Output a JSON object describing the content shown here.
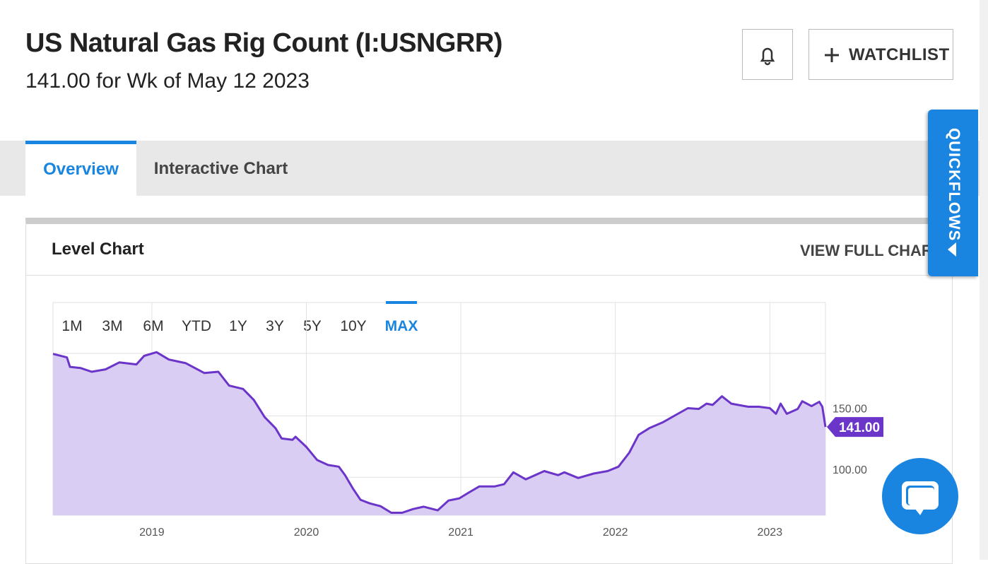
{
  "header": {
    "title": "US Natural Gas Rig Count (I:USNGRR)",
    "subtitle": "141.00 for Wk of May 12 2023"
  },
  "buttons": {
    "watchlist": "WATCHLIST"
  },
  "tabs": [
    "Overview",
    "Interactive Chart"
  ],
  "panel": {
    "title": "Level Chart",
    "link": "VIEW FULL CHART"
  },
  "quickflows": "QUICKFLOWS",
  "ranges": [
    "1M",
    "3M",
    "6M",
    "YTD",
    "1Y",
    "3Y",
    "5Y",
    "10Y",
    "MAX"
  ],
  "chart_data": {
    "type": "area",
    "x": [
      2018.36,
      2018.45,
      2018.47,
      2018.54,
      2018.61,
      2018.7,
      2018.79,
      2018.9,
      2018.95,
      2019.03,
      2019.11,
      2019.22,
      2019.34,
      2019.43,
      2019.5,
      2019.59,
      2019.66,
      2019.73,
      2019.8,
      2019.84,
      2019.91,
      2019.93,
      2020.0,
      2020.07,
      2020.14,
      2020.21,
      2020.25,
      2020.3,
      2020.35,
      2020.41,
      2020.48,
      2020.55,
      2020.62,
      2020.69,
      2020.76,
      2020.85,
      2020.92,
      2020.99,
      2021.05,
      2021.12,
      2021.22,
      2021.28,
      2021.34,
      2021.42,
      2021.54,
      2021.63,
      2021.67,
      2021.76,
      2021.86,
      2021.95,
      2022.02,
      2022.09,
      2022.15,
      2022.22,
      2022.31,
      2022.38,
      2022.47,
      2022.54,
      2022.59,
      2022.63,
      2022.69,
      2022.75,
      2022.86,
      2022.93,
      2023.0,
      2023.04,
      2023.07,
      2023.11,
      2023.18,
      2023.21,
      2023.27,
      2023.32,
      2023.34,
      2023.36
    ],
    "values": [
      200.6,
      197.7,
      190,
      189,
      186,
      188,
      193.7,
      192,
      199,
      202,
      196,
      193,
      185,
      186,
      174.7,
      172,
      163,
      149,
      140,
      131.6,
      130.5,
      133,
      124.7,
      114,
      110,
      108.6,
      101.7,
      91,
      81.6,
      78.7,
      76.4,
      71,
      71,
      74,
      76,
      73,
      81,
      82.8,
      87.4,
      92.5,
      92.5,
      94.3,
      104,
      98.3,
      105,
      101.7,
      104,
      99.4,
      103,
      105,
      108.6,
      120,
      134.5,
      140,
      145,
      150,
      156.3,
      155.7,
      160,
      159,
      166,
      160,
      157.5,
      157.5,
      156.3,
      151.7,
      160,
      151.7,
      155.7,
      162,
      158,
      161.5,
      157.5,
      141
    ],
    "color": "#6b35c9",
    "fill_color": "#dacdf3",
    "last_label": "141.00",
    "xlim": [
      2018.36,
      2023.36
    ],
    "xticks": [
      2019,
      2020,
      2021,
      2022,
      2023
    ],
    "ylim": [
      69,
      201
    ],
    "yticks": [
      {
        "value": 100,
        "label": "100.00"
      },
      {
        "value": 150,
        "label": "150.00"
      }
    ],
    "grid": true
  }
}
